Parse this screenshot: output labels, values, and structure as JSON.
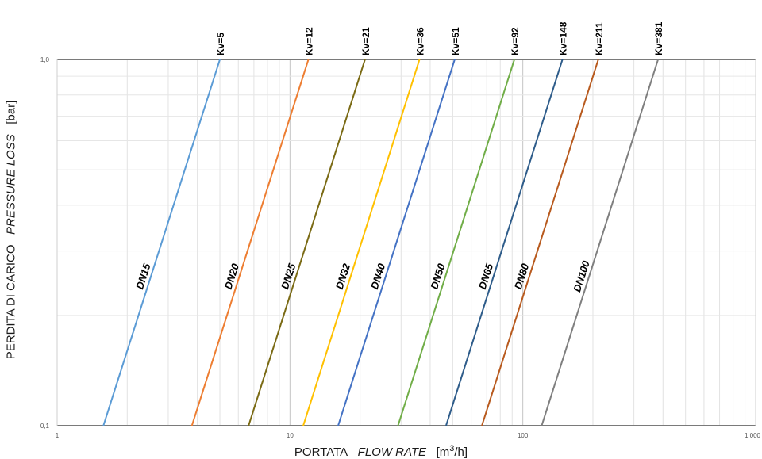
{
  "chart_data": {
    "type": "line",
    "title": "",
    "xscale": "log",
    "yscale": "log",
    "xlim": [
      1,
      1000
    ],
    "ylim": [
      0.1,
      1.0
    ],
    "x_ticks": [
      {
        "value": 1,
        "label": "1"
      },
      {
        "value": 10,
        "label": "10"
      },
      {
        "value": 100,
        "label": "100"
      },
      {
        "value": 1000,
        "label": "1.000"
      }
    ],
    "y_ticks": [
      {
        "value": 0.1,
        "label": "0,1"
      },
      {
        "value": 1.0,
        "label": "1,0"
      }
    ],
    "xlabel": {
      "main": "PORTATA",
      "italic": "FLOW RATE",
      "unit_pre": "[m",
      "unit_sup": "3",
      "unit_post": "/h]"
    },
    "ylabel": {
      "main": "PERDITA DI CARICO",
      "italic": "PRESSURE LOSS",
      "unit": "[bar]"
    },
    "grid": true,
    "series": [
      {
        "name": "DN15",
        "kv_label": "Kv=5",
        "kv": 5,
        "color": "#5b9bd5",
        "points": [
          [
            1.58,
            0.1
          ],
          [
            5,
            1.0
          ]
        ]
      },
      {
        "name": "DN20",
        "kv_label": "Kv=12",
        "kv": 12,
        "color": "#ed7d31",
        "points": [
          [
            3.79,
            0.1
          ],
          [
            12,
            1.0
          ]
        ]
      },
      {
        "name": "DN25",
        "kv_label": "Kv=21",
        "kv": 21,
        "color": "#7a6a14",
        "points": [
          [
            6.64,
            0.1
          ],
          [
            21,
            1.0
          ]
        ]
      },
      {
        "name": "DN32",
        "kv_label": "Kv=36",
        "kv": 36,
        "color": "#ffc000",
        "points": [
          [
            11.4,
            0.1
          ],
          [
            36,
            1.0
          ]
        ]
      },
      {
        "name": "DN40",
        "kv_label": "Kv=51",
        "kv": 51,
        "color": "#4472c4",
        "points": [
          [
            16.1,
            0.1
          ],
          [
            51,
            1.0
          ]
        ]
      },
      {
        "name": "DN50",
        "kv_label": "Kv=92",
        "kv": 92,
        "color": "#70ad47",
        "points": [
          [
            29.1,
            0.1
          ],
          [
            92,
            1.0
          ]
        ]
      },
      {
        "name": "DN65",
        "kv_label": "Kv=148",
        "kv": 148,
        "color": "#2e5c8a",
        "points": [
          [
            46.8,
            0.1
          ],
          [
            148,
            1.0
          ]
        ]
      },
      {
        "name": "DN80",
        "kv_label": "Kv=211",
        "kv": 211,
        "color": "#b85a1e",
        "points": [
          [
            66.7,
            0.1
          ],
          [
            211,
            1.0
          ]
        ]
      },
      {
        "name": "DN100",
        "kv_label": "Kv=381",
        "kv": 381,
        "color": "#7f7f7f",
        "points": [
          [
            120.5,
            0.1
          ],
          [
            381,
            1.0
          ]
        ]
      }
    ]
  }
}
